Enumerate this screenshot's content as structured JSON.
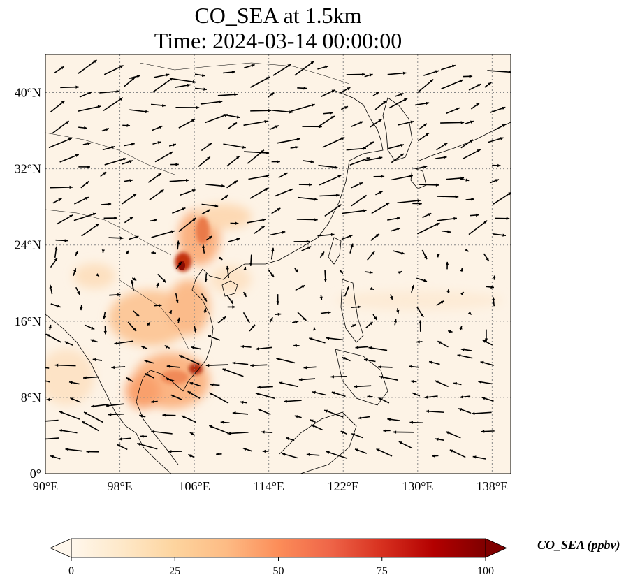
{
  "title": {
    "line1": "CO_SEA at 1.5km",
    "line2": "Time: 2024-03-14 00:00:00"
  },
  "map": {
    "lon_range": [
      90,
      140
    ],
    "lat_range": [
      0,
      44
    ],
    "lon_ticks": [
      "90°E",
      "98°E",
      "106°E",
      "114°E",
      "122°E",
      "130°E",
      "138°E"
    ],
    "lat_ticks": [
      "0°",
      "8°N",
      "16°N",
      "24°N",
      "32°N",
      "40°N"
    ],
    "lon_tick_values": [
      90,
      98,
      106,
      114,
      122,
      130,
      138
    ],
    "lat_tick_values": [
      0,
      8,
      16,
      24,
      32,
      40
    ],
    "gridlines": true,
    "projection": "PlateCarree",
    "background_color": "#fdf3e6",
    "coastline_color": "#000000",
    "wind_vectors": true
  },
  "colorbar": {
    "label": "CO_SEA (ppbv)",
    "ticks": [
      "0",
      "25",
      "50",
      "75",
      "100"
    ],
    "tick_values": [
      0,
      25,
      50,
      75,
      100
    ],
    "range": [
      0,
      100
    ],
    "colormap": "OrRd",
    "extend": "both",
    "colors": [
      "#fff7ec",
      "#fee8c8",
      "#fdd49e",
      "#fdbb84",
      "#fc8d59",
      "#ef6548",
      "#d7301f",
      "#b30000",
      "#7f0000"
    ]
  }
}
